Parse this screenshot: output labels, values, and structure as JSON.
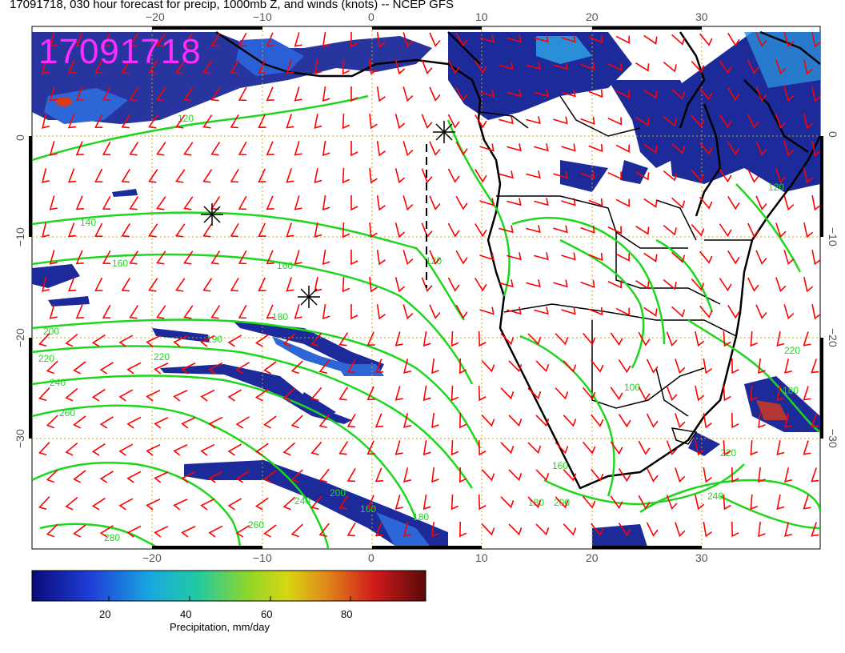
{
  "title": "17091718, 030 hour forecast for precip, 1000mb Z, and winds (knots) -- NCEP GFS",
  "date_stamp": "17091718",
  "map": {
    "lon_ticks": [
      "−20",
      "−10",
      "0",
      "10",
      "20",
      "30"
    ],
    "lat_ticks": [
      "0",
      "−10",
      "−20",
      "−30"
    ],
    "contour_labels": [
      "120",
      "140",
      "160",
      "160",
      "180",
      "190",
      "200",
      "220",
      "220",
      "240",
      "260",
      "260",
      "240",
      "200",
      "180",
      "160",
      "120",
      "100",
      "160",
      "180",
      "200",
      "220",
      "240",
      "220",
      "180",
      "120",
      "280"
    ],
    "colors": {
      "contour": "#1fd61f",
      "wind_barb": "#ff0000",
      "coast": "#000000",
      "grid": "#d4a017",
      "title_stamp": "#ff2cff",
      "precip_low": "#1a1a8c",
      "precip_mid": "#2a5fd6"
    }
  },
  "colorbar": {
    "ticks": [
      "20",
      "40",
      "60",
      "80"
    ],
    "label": "Precipitation, mm/day"
  }
}
